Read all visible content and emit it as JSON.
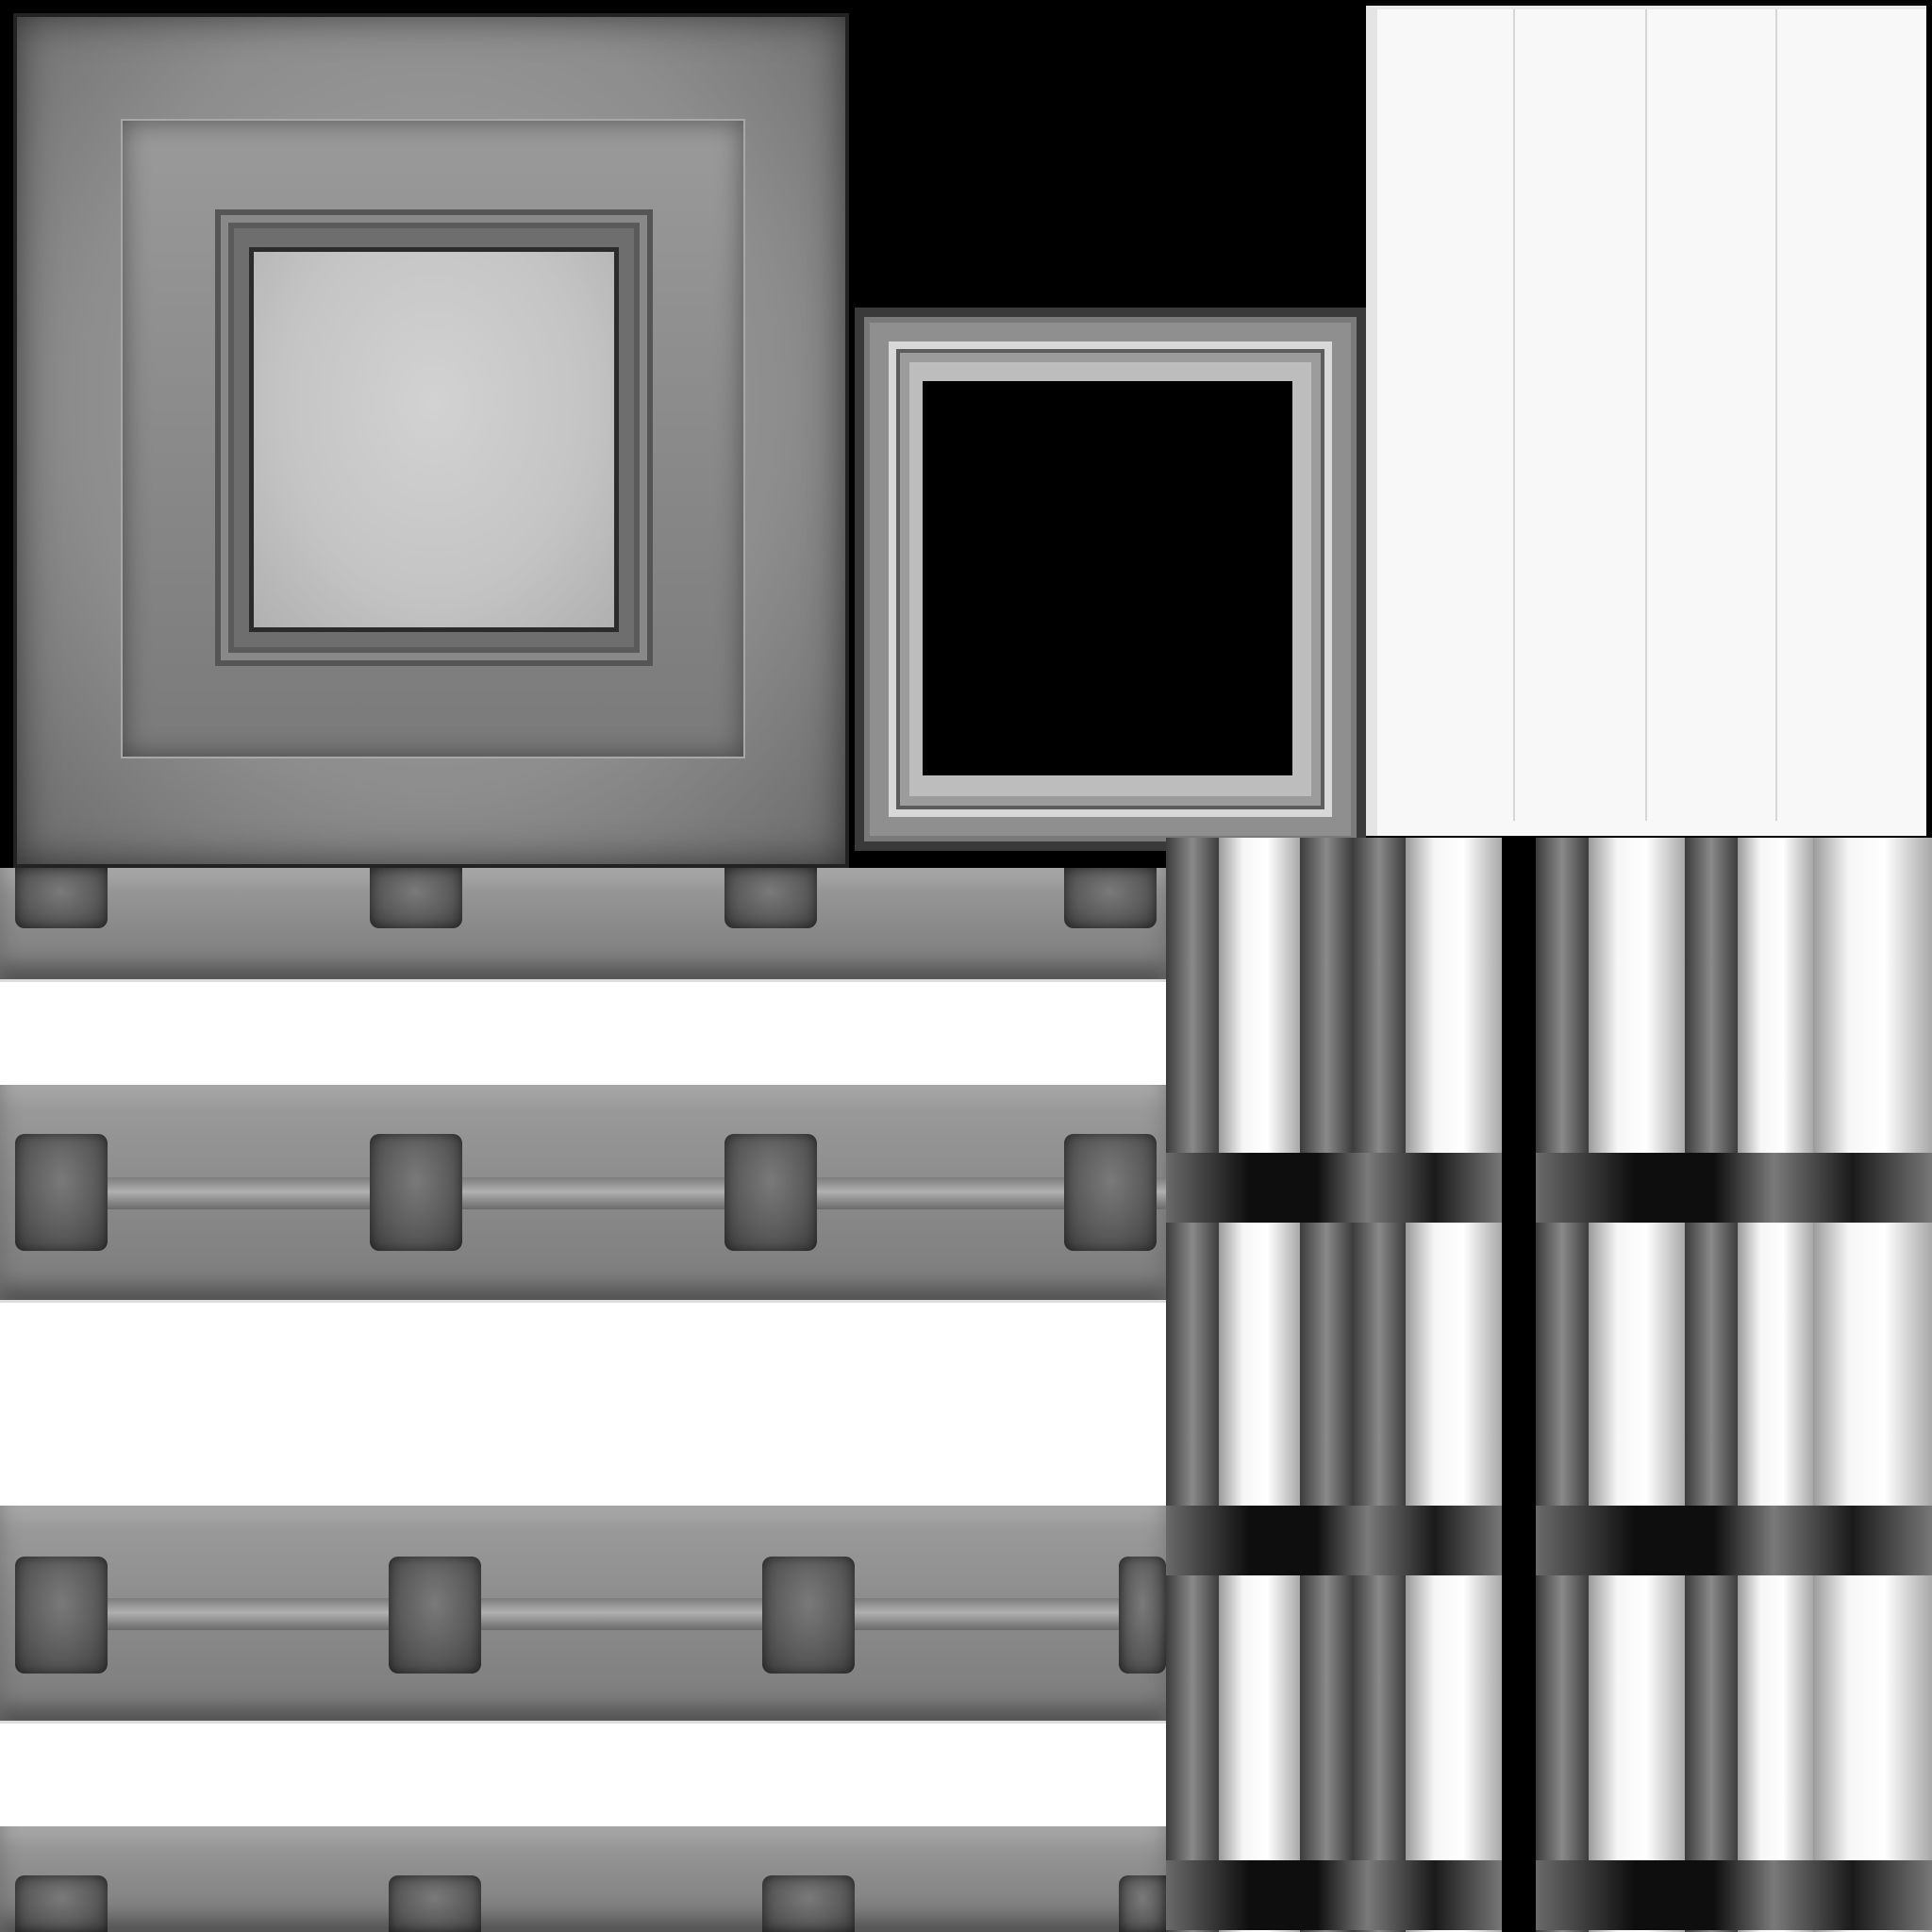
{
  "canvas": {
    "background": "#000000"
  },
  "colors": {
    "panel_mid_gray": "#8d8d8d",
    "panel_face_light": "#c8c8c8",
    "frame_gray": "#9c9c9c",
    "sheet_white": "#f8f8f8",
    "strip_gray": "#8b8b8b",
    "peg_dark": "#5a5a5a",
    "band_white": "#ffffff",
    "bar_dark": "#3c3c3c"
  },
  "regions": {
    "panel": "recessed-square-panel",
    "frame": "square-frame-with-hole",
    "sheet": "white-paneled-sheet",
    "strips": "horizontal-rail-strips",
    "columns": "vertical-column-bars"
  }
}
